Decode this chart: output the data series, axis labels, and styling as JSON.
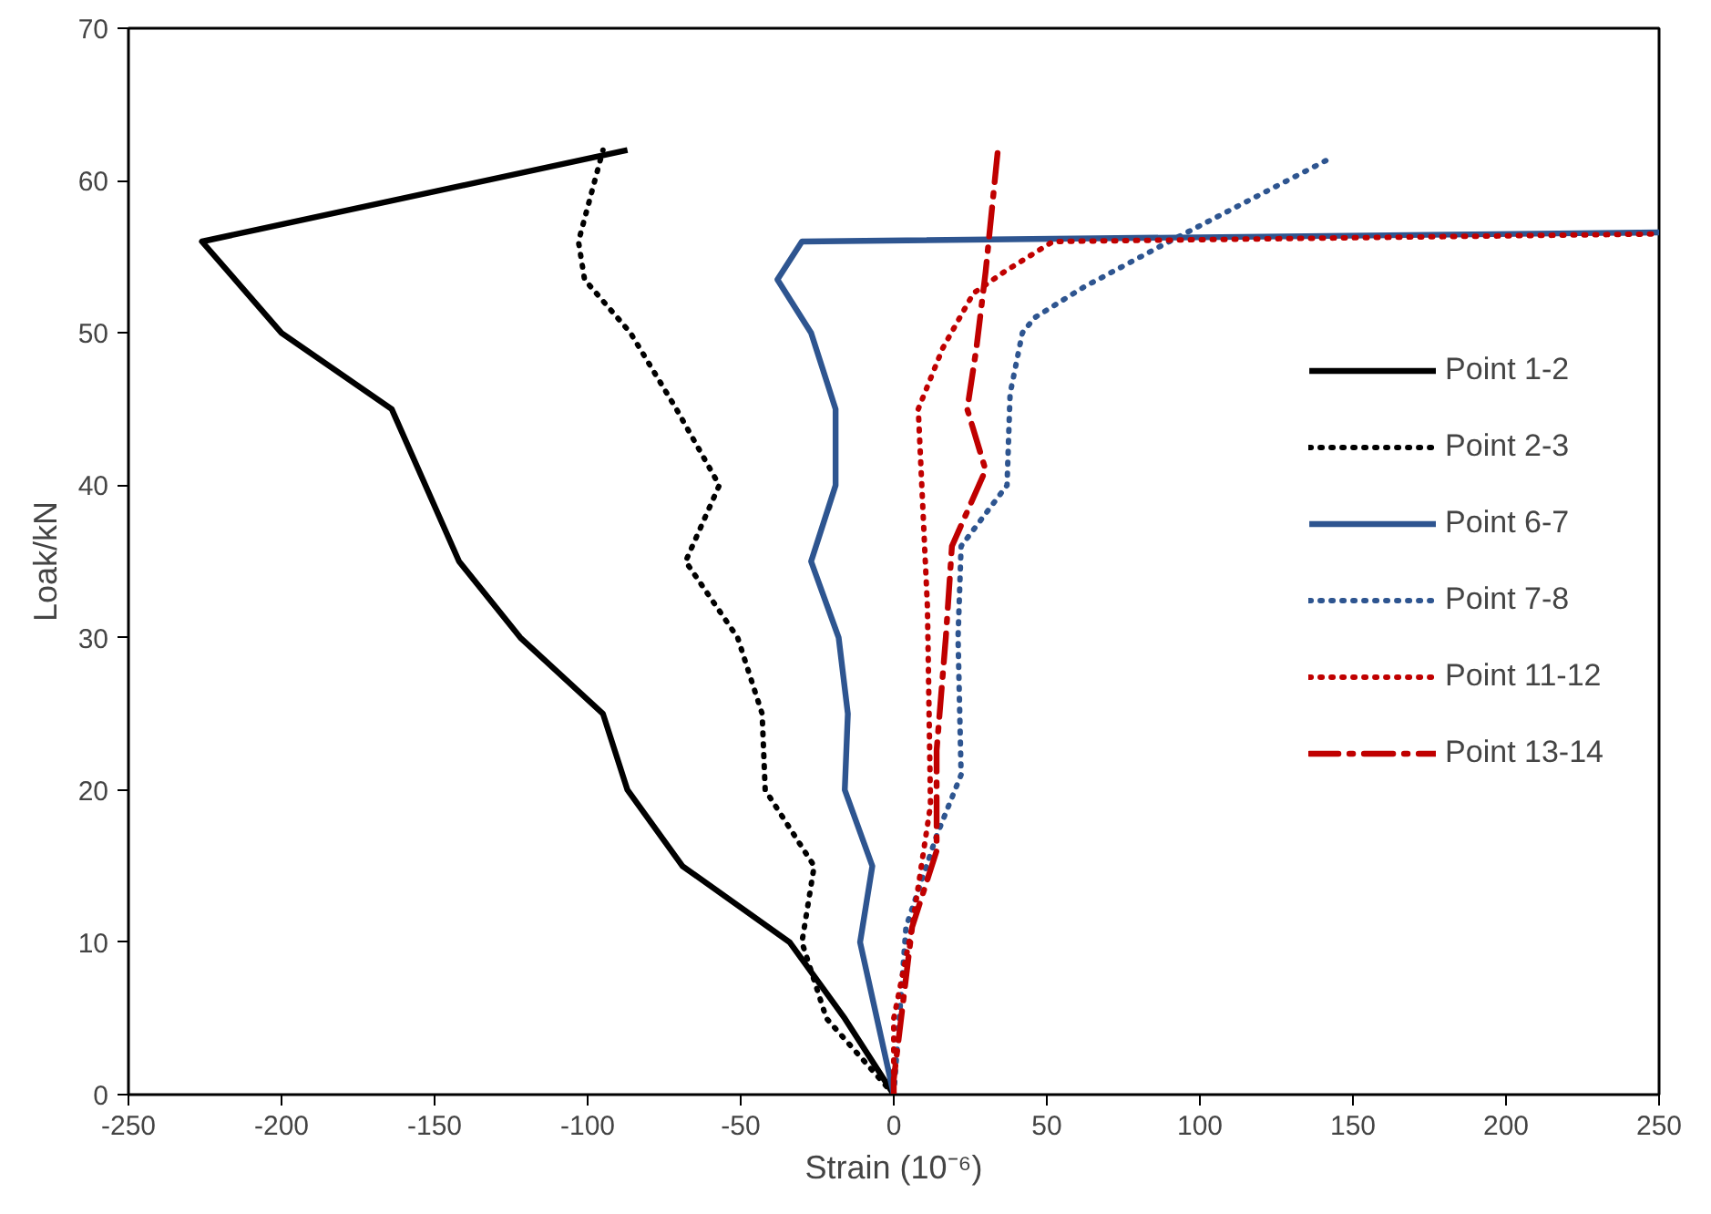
{
  "chart_data": {
    "type": "line",
    "xlabel": "Strain (10⁻⁶)",
    "ylabel": "Loak/kN",
    "xlim": [
      -250,
      250
    ],
    "ylim": [
      0,
      70
    ],
    "xticks": [
      -250,
      -200,
      -150,
      -100,
      -50,
      0,
      50,
      100,
      150,
      200,
      250
    ],
    "yticks": [
      0,
      10,
      20,
      30,
      40,
      50,
      60,
      70
    ],
    "grid": false,
    "legend": "right",
    "series": [
      {
        "name": "Point 1-2",
        "color": "#000000",
        "line_style": "solid",
        "x": [
          0,
          -16,
          -34,
          -69,
          -87,
          -95,
          -122,
          -142,
          -164,
          -200,
          -226,
          -87
        ],
        "values": [
          0,
          5,
          10,
          15,
          20,
          25,
          30,
          35,
          45,
          50,
          56,
          62
        ]
      },
      {
        "name": "Point 2-3",
        "color": "#000000",
        "line_style": "dotted",
        "x": [
          0,
          -22,
          -30,
          -26,
          -42,
          -43,
          -51,
          -68,
          -57,
          -71,
          -86,
          -101,
          -103,
          -95
        ],
        "values": [
          0,
          5,
          10,
          15,
          20,
          25,
          30,
          35,
          40,
          45,
          50,
          53.5,
          56,
          62
        ]
      },
      {
        "name": "Point 6-7",
        "color": "#2e5590",
        "line_style": "solid",
        "x": [
          0,
          -11,
          -7,
          -16,
          -15,
          -18,
          -27,
          -19,
          -19,
          -27,
          -38,
          -30,
          250
        ],
        "values": [
          0,
          10,
          15,
          20,
          25,
          30,
          35,
          40,
          45,
          50,
          53.5,
          56,
          56.6
        ]
      },
      {
        "name": "Point 7-8",
        "color": "#2e5590",
        "line_style": "dotted",
        "x": [
          0,
          4,
          14,
          22,
          21,
          22,
          37,
          38,
          42,
          46,
          62,
          90,
          143
        ],
        "values": [
          0,
          11,
          17,
          21,
          30,
          36,
          40,
          46,
          50,
          51,
          53,
          56,
          61.5
        ]
      },
      {
        "name": "Point 11-12",
        "color": "#c00000",
        "line_style": "dotted",
        "x": [
          0,
          0,
          6,
          12,
          11,
          8,
          16,
          26,
          36,
          52,
          250
        ],
        "values": [
          0,
          5,
          11,
          19,
          32,
          45,
          49,
          52.6,
          54,
          56,
          56.5
        ]
      },
      {
        "name": "Point 13-14",
        "color": "#c00000",
        "line_style": "dashdot",
        "x": [
          0,
          0,
          6,
          14,
          14,
          17,
          19,
          30,
          24,
          27,
          30,
          34
        ],
        "values": [
          0,
          1,
          11,
          16,
          22.6,
          30,
          36,
          41,
          45,
          49,
          54,
          62
        ]
      }
    ]
  }
}
